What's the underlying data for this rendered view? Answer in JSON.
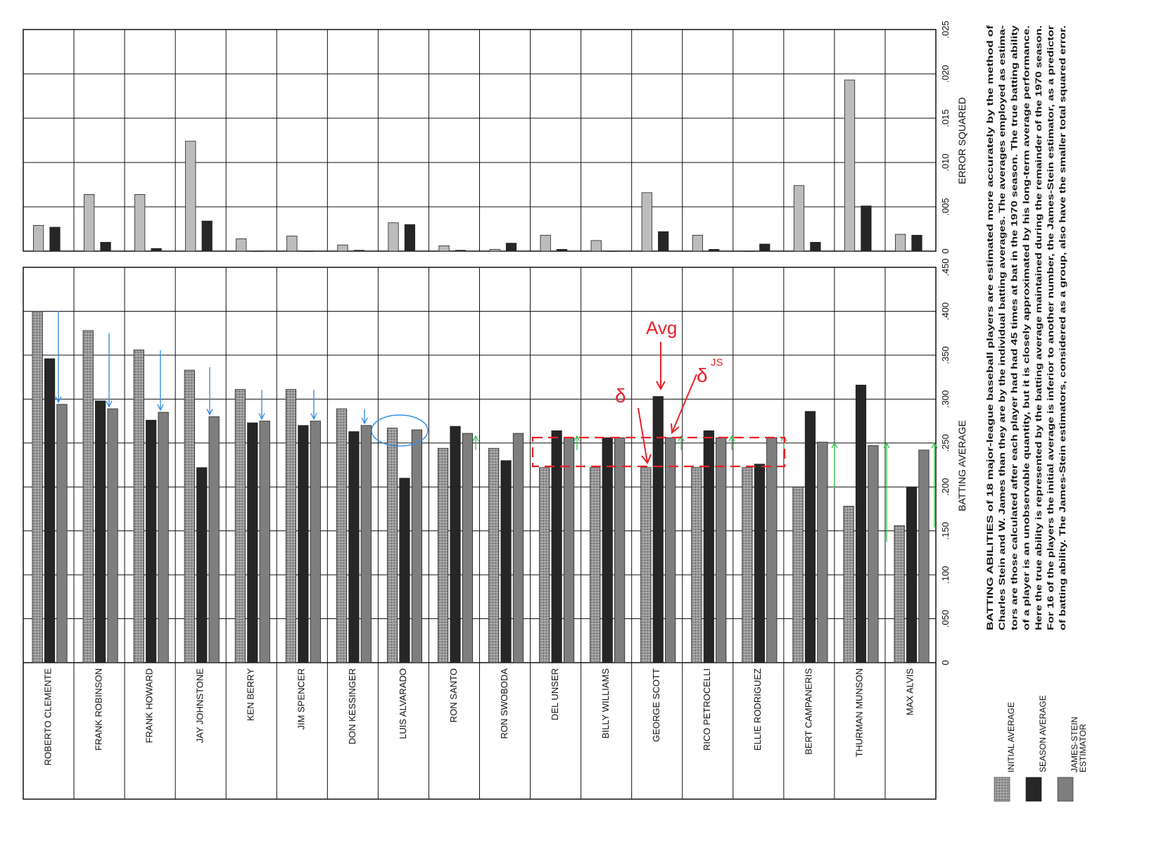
{
  "chart_data": [
    {
      "type": "bar",
      "xlabel": "BATTING AVERAGE",
      "xticks": [
        "0",
        ".050",
        ".100",
        ".150",
        ".200",
        ".250",
        ".300",
        ".350",
        ".400",
        ".450"
      ],
      "xlim": [
        0,
        0.45
      ],
      "categories": [
        "ROBERTO CLEMENTE",
        "FRANK ROBINSON",
        "FRANK HOWARD",
        "JAY JOHNSTONE",
        "KEN BERRY",
        "JIM SPENCER",
        "DON KESSINGER",
        "LUIS ALVARADO",
        "RON SANTO",
        "RON SWOBODA",
        "DEL UNSER",
        "BILLY WILLIAMS",
        "GEORGE SCOTT",
        "RICO PETROCELLI",
        "ELLIE RODRIGUEZ",
        "BERT CAMPANERIS",
        "THURMAN MUNSON",
        "MAX ALVIS"
      ],
      "series": [
        {
          "name": "INITIAL AVERAGE",
          "values": [
            0.4,
            0.378,
            0.356,
            0.333,
            0.311,
            0.311,
            0.289,
            0.267,
            0.244,
            0.244,
            0.222,
            0.222,
            0.222,
            0.222,
            0.222,
            0.2,
            0.178,
            0.156
          ]
        },
        {
          "name": "SEASON AVERAGE",
          "values": [
            0.346,
            0.298,
            0.276,
            0.222,
            0.273,
            0.27,
            0.263,
            0.21,
            0.269,
            0.23,
            0.264,
            0.256,
            0.303,
            0.264,
            0.226,
            0.286,
            0.316,
            0.2
          ]
        },
        {
          "name": "JAMES-STEIN ESTIMATOR",
          "values": [
            0.294,
            0.289,
            0.285,
            0.28,
            0.275,
            0.275,
            0.27,
            0.265,
            0.261,
            0.261,
            0.256,
            0.256,
            0.256,
            0.256,
            0.256,
            0.251,
            0.247,
            0.242
          ]
        }
      ]
    },
    {
      "type": "bar",
      "xlabel": "ERROR SQUARED",
      "xticks": [
        "0",
        ".005",
        ".010",
        ".015",
        ".020",
        ".025"
      ],
      "xlim": [
        0,
        0.025
      ],
      "categories": [
        "ROBERTO CLEMENTE",
        "FRANK ROBINSON",
        "FRANK HOWARD",
        "JAY JOHNSTONE",
        "KEN BERRY",
        "JIM SPENCER",
        "DON KESSINGER",
        "LUIS ALVARADO",
        "RON SANTO",
        "RON SWOBODA",
        "DEL UNSER",
        "BILLY WILLIAMS",
        "GEORGE SCOTT",
        "RICO PETROCELLI",
        "ELLIE RODRIGUEZ",
        "BERT CAMPANERIS",
        "THURMAN MUNSON",
        "MAX ALVIS"
      ],
      "series": [
        {
          "name": "INITIAL AVERAGE",
          "values": [
            0.0029,
            0.0064,
            0.0064,
            0.0124,
            0.0014,
            0.0017,
            0.0007,
            0.0032,
            0.0006,
            0.0002,
            0.0018,
            0.0012,
            0.0066,
            0.0018,
            0.0,
            0.0074,
            0.0193,
            0.0019
          ]
        },
        {
          "name": "JAMES-STEIN ESTIMATOR",
          "values": [
            0.0027,
            0.001,
            0.0003,
            0.0034,
            0.0,
            0.0,
            0.0001,
            0.003,
            0.0001,
            0.0009,
            0.0002,
            0.0,
            0.0022,
            0.0002,
            0.0008,
            0.001,
            0.0051,
            0.0018
          ]
        }
      ]
    }
  ],
  "legend": {
    "items": [
      {
        "label": "INITIAL AVERAGE",
        "fill": "#9a9a9a"
      },
      {
        "label": "SEASON AVERAGE",
        "fill": "#262626"
      },
      {
        "label": "JAMES-STEIN\nESTIMATOR",
        "fill": "#7e7e7e"
      }
    ]
  },
  "caption": {
    "lines": [
      "BATTING ABILITIES of 18 major-league baseball players are estimated more accurately by the method of",
      "Charles Stein and W. James than they are by the individual batting averages. The averages employed as estima-",
      "tors are those calculated after each player had had 45 times at bat in the 1970 season. The true batting ability",
      "of a player is an unobservable quantity, but it is closely approximated by his long-term average performance.",
      "Here the true ability is represented by the batting average maintained during the remainder of the 1970 season.",
      "For 16 of the players the initial average is inferior to another number, the James-Stein estimator, as a predictor",
      "of batting ability. The James-Stein estimators, considered as a group, also have the smaller total squared error."
    ]
  },
  "annotations": {
    "avg_label": "Avg",
    "delta_label": "δ",
    "delta_js_label": "δ",
    "delta_js_superscript": "JS",
    "colors": {
      "red": "#e8202a",
      "blue": "#3a8ee6",
      "green": "#33c24a"
    }
  },
  "colors": {
    "initial": "#9a9a9a",
    "season": "#262626",
    "james_stein": "#7e7e7e",
    "grid": "#111111"
  }
}
